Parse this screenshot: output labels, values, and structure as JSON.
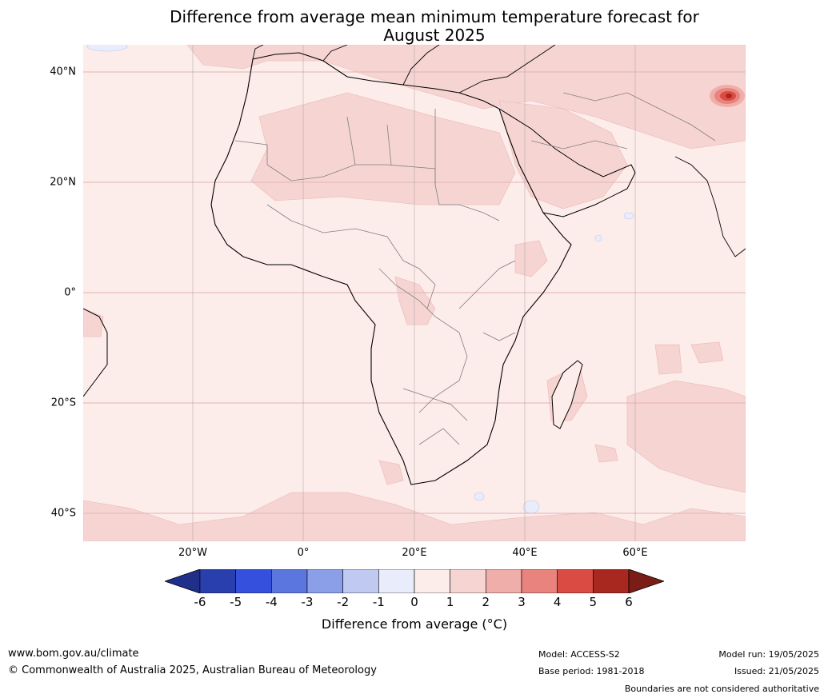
{
  "title_line1": "Difference from average mean minimum temperature forecast for",
  "title_line2": "August 2025",
  "lat_labels": [
    "40°N",
    "20°N",
    "0°",
    "20°S",
    "40°S"
  ],
  "lon_labels": [
    "20°W",
    "0°",
    "20°E",
    "40°E",
    "60°E"
  ],
  "colorbar": {
    "ticks": [
      "-6",
      "-5",
      "-4",
      "-3",
      "-2",
      "-1",
      "0",
      "1",
      "2",
      "3",
      "4",
      "5",
      "6"
    ],
    "colors": [
      "#1f2f8a",
      "#2a3fae",
      "#3550dc",
      "#5c76e0",
      "#8b9ee8",
      "#c0c9f2",
      "#e9ecfa",
      "#fcecea",
      "#f6d4d2",
      "#efaeaa",
      "#e8837d",
      "#d94b43",
      "#a8281f",
      "#7a1d16"
    ],
    "label": "Difference from average (°C)"
  },
  "colors": {
    "ocean_fill": "#fcecea",
    "warm_1_2": "#f6d4d2",
    "warm_3_4": "#e8837d",
    "warm_5_6": "#d94b43",
    "cool_0_neg1": "#e9ecfa",
    "gridline": "#e0b4b4",
    "coastline": "#000000",
    "border": "#808080"
  },
  "footer": {
    "website": "www.bom.gov.au/climate",
    "copyright": "© Commonwealth of Australia 2025, Australian Bureau of Meteorology",
    "model": "Model: ACCESS-S2",
    "base_period": "Base period: 1981-2018",
    "model_run": "Model run: 19/05/2025",
    "issued": "Issued: 21/05/2025",
    "disclaimer": "Boundaries are not considered authoritative"
  }
}
